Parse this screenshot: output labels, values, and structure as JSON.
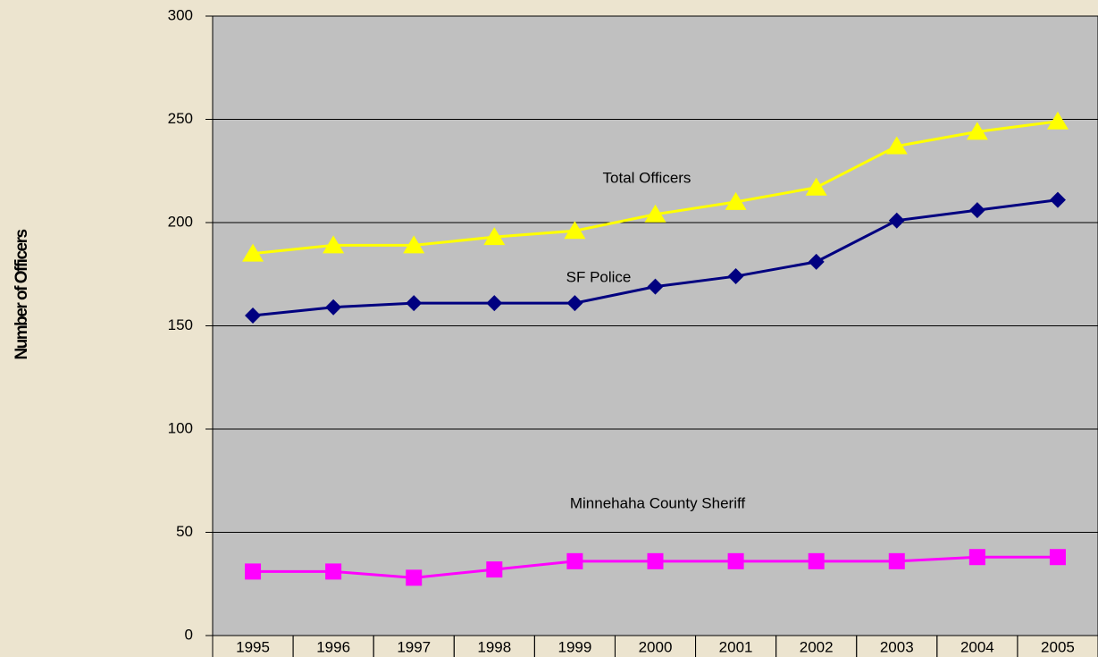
{
  "chart_data": {
    "type": "line",
    "y_label": "Number of Officers",
    "categories": [
      "1995",
      "1996",
      "1997",
      "1998",
      "1999",
      "2000",
      "2001",
      "2002",
      "2003",
      "2004",
      "2005"
    ],
    "series": [
      {
        "name": "Total Officers",
        "color": "#ffff00",
        "marker": "triangle",
        "values": [
          185,
          189,
          189,
          193,
          196,
          204,
          210,
          217,
          237,
          244,
          249
        ]
      },
      {
        "name": "SF Police",
        "color": "#000080",
        "marker": "diamond",
        "values": [
          155,
          159,
          161,
          161,
          161,
          169,
          174,
          181,
          201,
          206,
          211
        ]
      },
      {
        "name": "Minnehaha County Sheriff",
        "color": "#ff00ff",
        "marker": "square",
        "values": [
          31,
          31,
          28,
          32,
          36,
          36,
          36,
          36,
          36,
          38,
          38
        ]
      }
    ],
    "ylim": [
      0,
      300
    ],
    "yticks": [
      0,
      50,
      100,
      150,
      200,
      250,
      300
    ],
    "grid": true
  }
}
